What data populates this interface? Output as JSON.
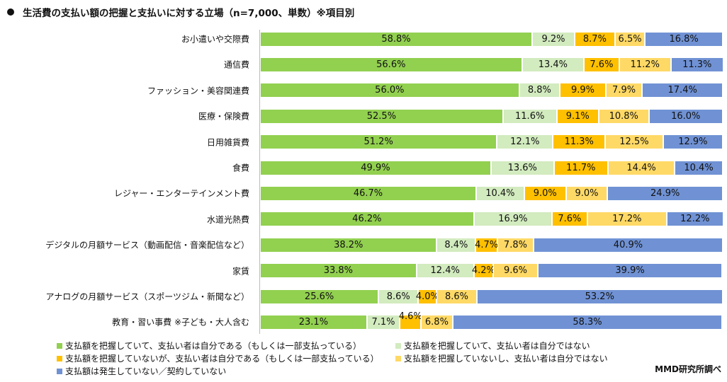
{
  "chart_data": {
    "type": "bar",
    "orientation": "horizontal",
    "stacked": true,
    "title": "生活費の支払い額の把握と支払いに対する立場（n=7,000、単数）※項目別",
    "xlim": [
      0,
      100
    ],
    "grid": false,
    "legend_placement": "bottom",
    "categories": [
      "お小遣いや交際費",
      "通信費",
      "ファッション・美容関連費",
      "医療・保険費",
      "日用雑貨費",
      "食費",
      "レジャー・エンターテインメント費",
      "水道光熱費",
      "デジタルの月額サービス（動画配信・音楽配信など）",
      "家賃",
      "アナログの月額サービス（スポーツジム・新聞など）",
      "教育・習い事費 ※子ども・大人含む"
    ],
    "series": [
      {
        "name": "支払額を把握していて、支払い者は自分である（もしくは一部支払っている）",
        "color": "#92d050",
        "values": [
          58.8,
          56.6,
          56.0,
          52.5,
          51.2,
          49.9,
          46.7,
          46.2,
          38.2,
          33.8,
          25.6,
          23.1
        ]
      },
      {
        "name": "支払額を把握していて、支払い者は自分ではない",
        "color": "#d2ebbf",
        "values": [
          9.2,
          13.4,
          8.8,
          11.6,
          12.1,
          13.6,
          10.4,
          16.9,
          8.4,
          12.4,
          8.6,
          7.1
        ]
      },
      {
        "name": "支払額を把握していないが、支払い者は自分である（もしくは一部支払っている）",
        "color": "#ffc000",
        "values": [
          8.7,
          7.6,
          9.9,
          9.1,
          11.3,
          11.7,
          9.0,
          7.6,
          4.7,
          4.2,
          4.0,
          4.6
        ]
      },
      {
        "name": "支払額を把握していないし、支払い者は自分ではない",
        "color": "#ffd966",
        "values": [
          6.5,
          11.2,
          7.9,
          10.8,
          12.5,
          14.4,
          9.0,
          17.2,
          7.8,
          9.6,
          8.6,
          6.8
        ]
      },
      {
        "name": "支払額は発生していない／契約していない",
        "color": "#7092d4",
        "values": [
          16.8,
          11.3,
          17.4,
          16.0,
          12.9,
          10.4,
          24.9,
          12.2,
          40.9,
          39.9,
          53.2,
          58.3
        ]
      }
    ],
    "value_suffix": "%"
  },
  "source": "MMD研究所調べ"
}
